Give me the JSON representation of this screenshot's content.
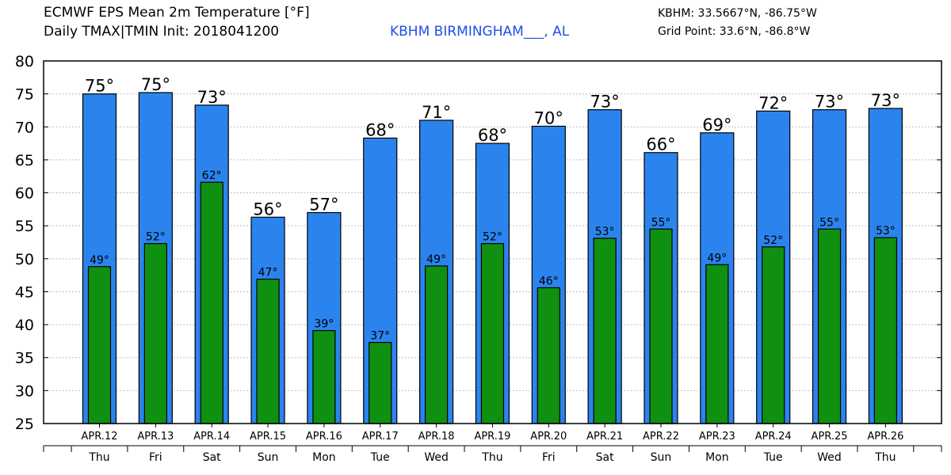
{
  "header": {
    "title_line1": "ECMWF EPS Mean 2m Temperature [°F]",
    "title_line2": "Daily TMAX|TMIN Init: 2018041200",
    "station": "KBHM BIRMINGHAM___, AL",
    "coords": "KBHM: 33.5667°N, -86.75°W",
    "grid_point": "Grid Point: 33.6°N, -86.8°W"
  },
  "colors": {
    "tmax_bar": "#2b84ee",
    "tmin_bar": "#109010",
    "station_text": "#1f4fe8",
    "grid": "#c0c0c0"
  },
  "chart_data": {
    "type": "bar",
    "title": "ECMWF EPS Mean 2m Temperature [°F]",
    "ylim": [
      25,
      80
    ],
    "yticks": [
      25,
      30,
      35,
      40,
      45,
      50,
      55,
      60,
      65,
      70,
      75,
      80
    ],
    "grid": true,
    "categories": [
      "APR.12",
      "APR.13",
      "APR.14",
      "APR.15",
      "APR.16",
      "APR.17",
      "APR.18",
      "APR.19",
      "APR.20",
      "APR.21",
      "APR.22",
      "APR.23",
      "APR.24",
      "APR.25",
      "APR.26"
    ],
    "weekdays": [
      "Thu",
      "Fri",
      "Sat",
      "Sun",
      "Mon",
      "Tue",
      "Wed",
      "Thu",
      "Fri",
      "Sat",
      "Sun",
      "Mon",
      "Tue",
      "Wed",
      "Thu"
    ],
    "series": [
      {
        "name": "TMAX",
        "values": [
          75.0,
          75.2,
          73.3,
          56.3,
          57.0,
          68.3,
          71.0,
          67.5,
          70.1,
          72.6,
          66.1,
          69.1,
          72.4,
          72.6,
          72.8
        ],
        "labels": [
          "75°",
          "75°",
          "73°",
          "56°",
          "57°",
          "68°",
          "71°",
          "68°",
          "70°",
          "73°",
          "66°",
          "69°",
          "72°",
          "73°",
          "73°"
        ]
      },
      {
        "name": "TMIN",
        "values": [
          48.8,
          52.3,
          61.6,
          46.9,
          39.1,
          37.3,
          48.9,
          52.3,
          45.6,
          53.1,
          54.5,
          49.1,
          51.8,
          54.5,
          53.2
        ],
        "labels": [
          "49°",
          "52°",
          "62°",
          "47°",
          "39°",
          "37°",
          "49°",
          "52°",
          "46°",
          "53°",
          "55°",
          "49°",
          "52°",
          "55°",
          "53°"
        ]
      }
    ]
  }
}
